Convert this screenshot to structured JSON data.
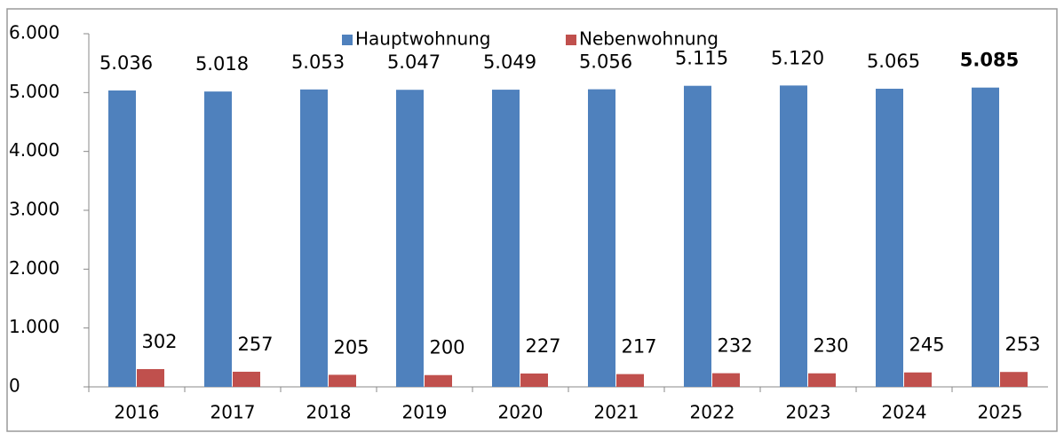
{
  "chart_data": {
    "type": "bar",
    "categories": [
      "2016",
      "2017",
      "2018",
      "2019",
      "2020",
      "2021",
      "2022",
      "2023",
      "2024",
      "2025"
    ],
    "series": [
      {
        "name": "Hauptwohnung",
        "color": "#4f81bd",
        "values": [
          5036,
          5018,
          5053,
          5047,
          5049,
          5056,
          5115,
          5120,
          5065,
          5085
        ],
        "value_labels": [
          "5.036",
          "5.018",
          "5.053",
          "5.047",
          "5.049",
          "5.056",
          "5.115",
          "5.120",
          "5.065",
          "5.085"
        ]
      },
      {
        "name": "Nebenwohnung",
        "color": "#c0504d",
        "values": [
          302,
          257,
          205,
          200,
          227,
          217,
          232,
          230,
          245,
          253
        ]
      }
    ],
    "ylim": [
      0,
      6000
    ],
    "yticks": [
      0,
      {
        "value": 1000,
        "label": "1.000"
      },
      {
        "value": 2000,
        "label": "2.000"
      },
      {
        "value": 3000,
        "label": "3.000"
      },
      {
        "value": 4000,
        "label": "4.000"
      },
      {
        "value": 5000,
        "label": "5.000"
      },
      {
        "value": 6000,
        "label": "6.000"
      }
    ],
    "legend": "top"
  }
}
